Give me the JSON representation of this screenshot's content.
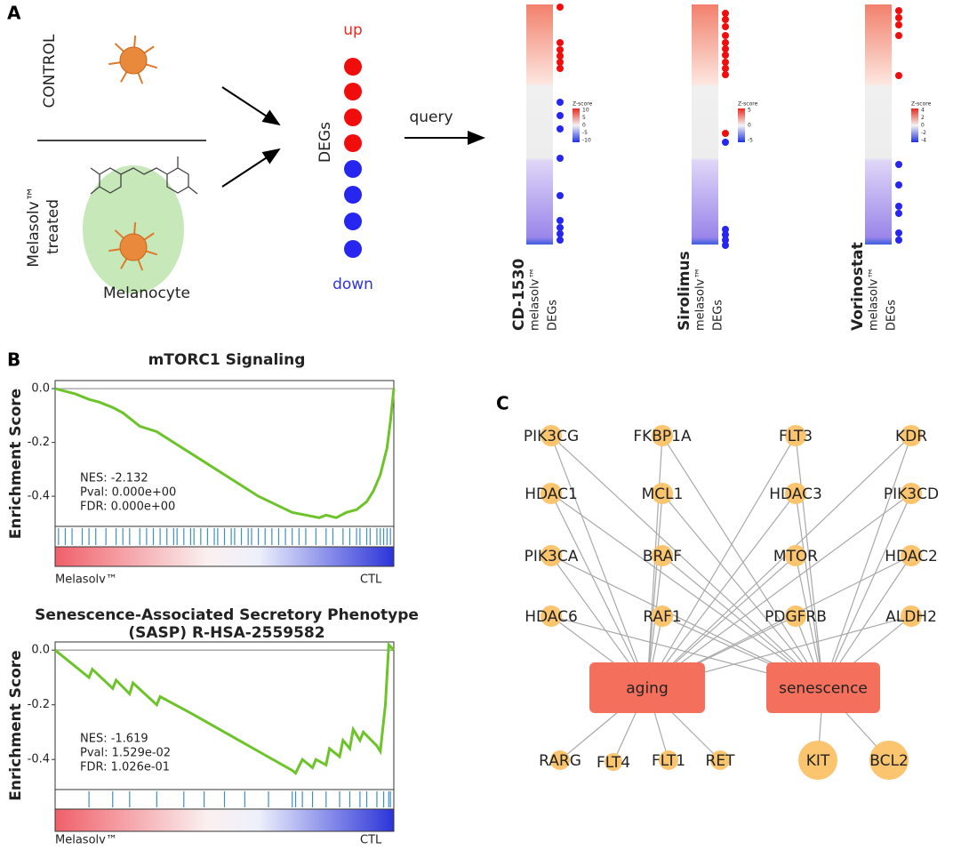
{
  "panel_a": {
    "label": "A",
    "control": "CONTROL",
    "treated": [
      "Melasolv™",
      "treated"
    ],
    "cell": "Melanocyte",
    "degs": {
      "title": "DEGs",
      "up": "up",
      "down": "down"
    },
    "arrow": "query",
    "heatmaps": [
      {
        "drug": "CD-1530",
        "col1": "melasolv™",
        "col2": "DEGs",
        "legend": "Z-score",
        "legend_ticks": [
          10,
          5,
          0,
          -5,
          -10
        ]
      },
      {
        "drug": "Sirolimus",
        "col1": "melasolv™",
        "col2": "DEGs",
        "legend": "Z-score",
        "legend_ticks": [
          5,
          0,
          -5
        ]
      },
      {
        "drug": "Vorinostat",
        "col1": "melasolv™",
        "col2": "DEGs",
        "legend": "Z-score",
        "legend_ticks": [
          4,
          2,
          0,
          -2,
          -4
        ]
      }
    ]
  },
  "panel_b": {
    "label": "B",
    "plots": [
      {
        "title": [
          "mTORC1 Signaling"
        ],
        "ylabel": "Enrichment Score",
        "ylim": [
          -0.512,
          0.03
        ],
        "xlim": [
          0,
          1
        ],
        "yticks": [
          {
            "value": 0,
            "label": "0.0"
          },
          {
            "value": -0.2,
            "label": "-0.2"
          },
          {
            "value": -0.4,
            "label": "-0.4"
          }
        ],
        "stats": [
          "NES: -2.132",
          "Pval: 0.000e+00",
          "FDR: 0.000e+00"
        ],
        "left_label": "Melasolv™",
        "right_label": "CTL",
        "x": [
          0,
          0.03,
          0.06,
          0.1,
          0.13,
          0.17,
          0.2,
          0.25,
          0.3,
          0.35,
          0.4,
          0.45,
          0.5,
          0.55,
          0.6,
          0.65,
          0.7,
          0.74,
          0.78,
          0.8,
          0.83,
          0.86,
          0.89,
          0.92,
          0.94,
          0.96,
          0.98,
          0.99,
          1
        ],
        "es": [
          0,
          -0.01,
          -0.02,
          -0.04,
          -0.05,
          -0.07,
          -0.09,
          -0.14,
          -0.16,
          -0.2,
          -0.24,
          -0.28,
          -0.32,
          -0.36,
          -0.4,
          -0.43,
          -0.46,
          -0.47,
          -0.48,
          -0.47,
          -0.48,
          -0.46,
          -0.45,
          -0.42,
          -0.38,
          -0.32,
          -0.22,
          -0.12,
          0
        ],
        "hits": [
          0.01,
          0.03,
          0.05,
          0.08,
          0.1,
          0.12,
          0.15,
          0.18,
          0.2,
          0.22,
          0.25,
          0.27,
          0.29,
          0.31,
          0.33,
          0.35,
          0.36,
          0.38,
          0.4,
          0.41,
          0.43,
          0.45,
          0.47,
          0.48,
          0.5,
          0.52,
          0.53,
          0.55,
          0.57,
          0.58,
          0.6,
          0.62,
          0.64,
          0.66,
          0.68,
          0.7,
          0.72,
          0.74,
          0.77,
          0.8,
          0.82,
          0.85,
          0.87,
          0.89,
          0.9,
          0.92,
          0.93,
          0.95,
          0.96,
          0.97,
          0.98,
          0.99
        ]
      },
      {
        "title": [
          "Senescence-Associated Secretory Phenotype",
          "(SASP) R-HSA-2559582"
        ],
        "ylabel": "Enrichment Score",
        "ylim": [
          -0.51,
          0.03
        ],
        "xlim": [
          0,
          1
        ],
        "yticks": [
          {
            "value": 0,
            "label": "0.0"
          },
          {
            "value": -0.2,
            "label": "-0.2"
          },
          {
            "value": -0.4,
            "label": "-0.4"
          }
        ],
        "stats": [
          "NES: -1.619",
          "Pval: 1.529e-02",
          "FDR: 1.026e-01"
        ],
        "left_label": "Melasolv™",
        "right_label": "CTL",
        "x": [
          0,
          0.1,
          0.11,
          0.17,
          0.18,
          0.22,
          0.23,
          0.3,
          0.31,
          0.4,
          0.5,
          0.6,
          0.7,
          0.71,
          0.73,
          0.76,
          0.77,
          0.8,
          0.81,
          0.84,
          0.85,
          0.87,
          0.88,
          0.9,
          0.91,
          0.95,
          0.96,
          0.975,
          0.985,
          1
        ],
        "es": [
          0,
          -0.1,
          -0.07,
          -0.14,
          -0.11,
          -0.16,
          -0.12,
          -0.2,
          -0.17,
          -0.23,
          -0.3,
          -0.37,
          -0.44,
          -0.45,
          -0.4,
          -0.43,
          -0.4,
          -0.42,
          -0.36,
          -0.39,
          -0.33,
          -0.36,
          -0.29,
          -0.33,
          -0.3,
          -0.35,
          -0.37,
          -0.2,
          0.02,
          0
        ],
        "hits": [
          0.1,
          0.17,
          0.22,
          0.3,
          0.38,
          0.44,
          0.5,
          0.56,
          0.63,
          0.7,
          0.71,
          0.73,
          0.76,
          0.8,
          0.84,
          0.87,
          0.9,
          0.92,
          0.95,
          0.97,
          0.985,
          0.99
        ]
      }
    ]
  },
  "panel_c": {
    "label": "C",
    "shared_genes": [
      "PIK3CG",
      "FKBP1A",
      "FLT3",
      "KDR",
      "HDAC1",
      "MCL1",
      "HDAC3",
      "PIK3CD",
      "PIK3CA",
      "BRAF",
      "MTOR",
      "HDAC2",
      "HDAC6",
      "RAF1",
      "PDGFRB",
      "ALDH2"
    ],
    "hubs": [
      {
        "label": "aging",
        "genes": [
          "RARG",
          "FLT4",
          "FLT1",
          "RET"
        ]
      },
      {
        "label": "senescence",
        "genes": [
          "KIT",
          "BCL2"
        ]
      }
    ]
  }
}
